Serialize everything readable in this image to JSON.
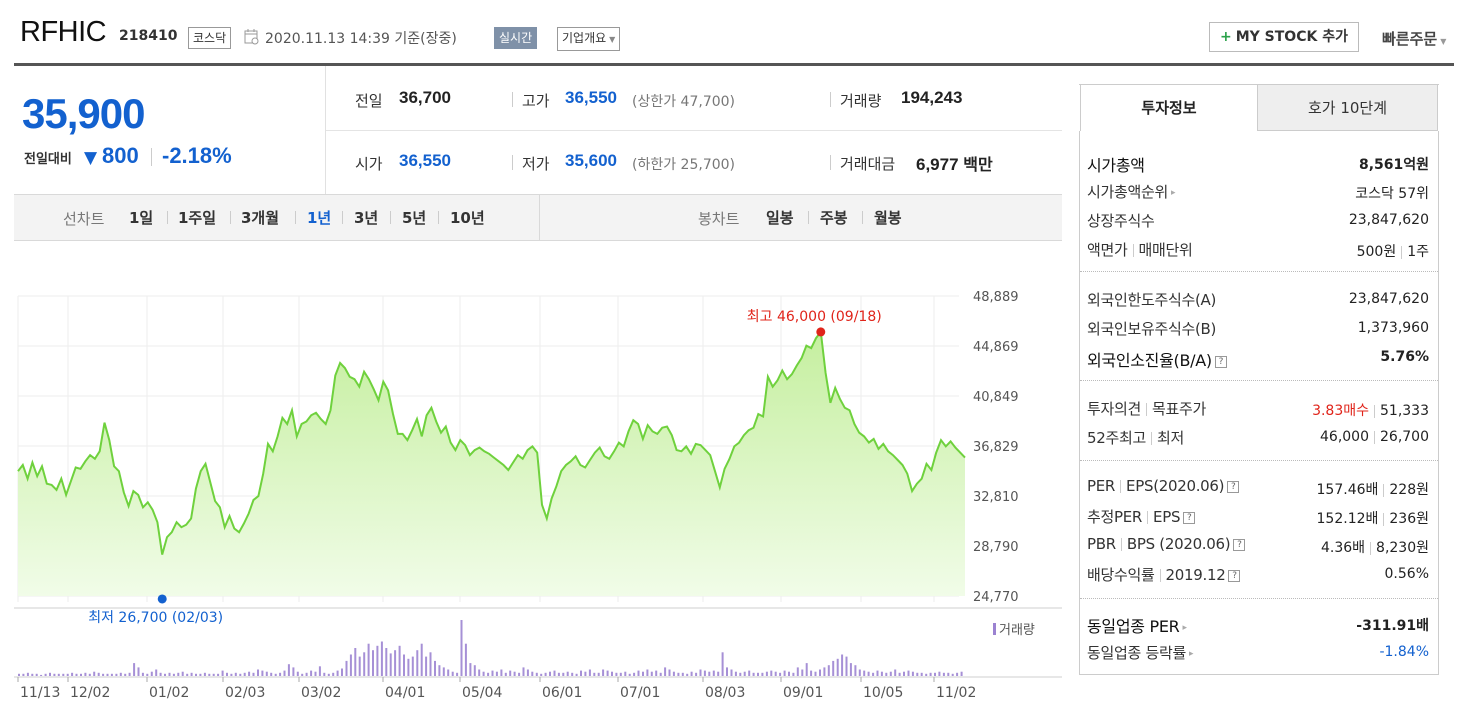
{
  "header": {
    "name": "RFHIC",
    "code": "218410",
    "market": "코스닥",
    "datetime": "2020.11.13 14:39 기준(장중)",
    "realtime_label": "실시간",
    "company_label": "기업개요",
    "mystock_label": "MY STOCK 추가",
    "mystock_plus": "+",
    "quick_order": "빠른주문"
  },
  "price": {
    "current": "35,900",
    "change_label": "전일대비",
    "change_arrow": "▼",
    "change_value": "800",
    "change_pct": "-2.18%",
    "color_down": "#1361cf"
  },
  "stats": {
    "prev_close": {
      "label": "전일",
      "value": "36,700"
    },
    "high": {
      "label": "고가",
      "value": "36,550",
      "note": "(상한가 47,700)"
    },
    "volume": {
      "label": "거래량",
      "value": "194,243"
    },
    "open": {
      "label": "시가",
      "value": "36,550"
    },
    "low": {
      "label": "저가",
      "value": "35,600",
      "note": "(하한가 25,700)"
    },
    "amount": {
      "label": "거래대금",
      "value": "6,977",
      "unit": "백만"
    }
  },
  "period_bar": {
    "line_label": "선차트",
    "line_items": [
      "1일",
      "1주일",
      "3개월",
      "1년",
      "3년",
      "5년",
      "10년"
    ],
    "active": "1년",
    "candle_label": "봉차트",
    "candle_items": [
      "일봉",
      "주봉",
      "월봉"
    ]
  },
  "chart_data": {
    "type": "area",
    "x_tick_labels": [
      "11/13",
      "12/02",
      "01/02",
      "02/03",
      "03/02",
      "04/01",
      "05/04",
      "06/01",
      "07/01",
      "08/03",
      "09/01",
      "10/05",
      "11/02"
    ],
    "y_tick_labels": [
      "48,889",
      "44,869",
      "40,849",
      "36,829",
      "32,810",
      "28,790",
      "24,770"
    ],
    "ylim": [
      24770,
      48889
    ],
    "price_series": [
      34800,
      35300,
      34200,
      35500,
      34400,
      35200,
      33800,
      33700,
      33300,
      34200,
      32900,
      34000,
      35100,
      35000,
      35600,
      36100,
      35800,
      36400,
      38700,
      37300,
      35200,
      34800,
      33100,
      32000,
      33200,
      32900,
      31900,
      32300,
      31700,
      30700,
      28100,
      29500,
      29900,
      30700,
      30300,
      30500,
      31000,
      33400,
      34800,
      35400,
      33900,
      32400,
      31900,
      30300,
      31200,
      30200,
      29900,
      30600,
      31400,
      32500,
      32800,
      34600,
      37000,
      36400,
      37600,
      39100,
      38600,
      39700,
      37600,
      38600,
      38800,
      39300,
      39500,
      39000,
      38600,
      39700,
      42500,
      43500,
      43100,
      42400,
      42200,
      41600,
      42800,
      42200,
      41400,
      40500,
      42000,
      41300,
      39400,
      37800,
      37800,
      37300,
      38100,
      39000,
      37600,
      39300,
      39900,
      38800,
      37900,
      38400,
      37100,
      36500,
      37300,
      36900,
      36100,
      36500,
      36700,
      36400,
      36200,
      35900,
      35600,
      35300,
      34900,
      35500,
      36100,
      35800,
      36500,
      36800,
      36300,
      32100,
      31000,
      32600,
      33600,
      34800,
      35300,
      35600,
      36000,
      35300,
      35100,
      35700,
      36300,
      36700,
      36000,
      35800,
      36400,
      37100,
      36800,
      38000,
      38900,
      38600,
      37400,
      38500,
      38000,
      37800,
      38300,
      38400,
      37700,
      36500,
      36400,
      36800,
      36200,
      37000,
      36900,
      36500,
      36100,
      34800,
      33500,
      35000,
      35800,
      36800,
      37100,
      37700,
      38100,
      38300,
      39400,
      39200,
      42400,
      41600,
      42100,
      42900,
      42200,
      42600,
      43300,
      43900,
      44900,
      44700,
      45500,
      46000,
      42700,
      40300,
      41500,
      40600,
      39900,
      39700,
      38600,
      37900,
      37600,
      37100,
      37400,
      36600,
      37000,
      36400,
      36100,
      35700,
      35300,
      34600,
      33200,
      33800,
      34200,
      35400,
      34900,
      36300,
      37300,
      36800,
      37200,
      36700,
      36300,
      35900
    ],
    "max_label": "최고 46,000 (09/18)",
    "min_label": "최저 26,700 (02/03)",
    "volume_label": "거래량",
    "volume_series": [
      2,
      2,
      3,
      2,
      2,
      1,
      2,
      3,
      2,
      2,
      2,
      2,
      3,
      2,
      2,
      3,
      2,
      4,
      3,
      2,
      2,
      2,
      2,
      3,
      2,
      3,
      12,
      8,
      3,
      2,
      4,
      6,
      3,
      2,
      3,
      2,
      3,
      4,
      2,
      3,
      2,
      2,
      3,
      2,
      2,
      2,
      5,
      3,
      2,
      3,
      2,
      3,
      4,
      3,
      6,
      5,
      4,
      3,
      2,
      3,
      5,
      11,
      8,
      4,
      2,
      3,
      5,
      4,
      9,
      3,
      2,
      3,
      5,
      7,
      14,
      20,
      26,
      18,
      22,
      30,
      24,
      28,
      32,
      26,
      21,
      24,
      28,
      20,
      16,
      18,
      24,
      30,
      18,
      22,
      14,
      10,
      8,
      6,
      4,
      3,
      52,
      30,
      12,
      10,
      6,
      4,
      3,
      5,
      4,
      6,
      3,
      5,
      4,
      3,
      8,
      6,
      4,
      3,
      2,
      3,
      4,
      5,
      3,
      3,
      4,
      3,
      2,
      5,
      4,
      6,
      3,
      3,
      6,
      5,
      4,
      3,
      3,
      4,
      2,
      3,
      5,
      4,
      6,
      4,
      5,
      3,
      8,
      6,
      4,
      3,
      3,
      2,
      4,
      3,
      6,
      5,
      4,
      5,
      4,
      22,
      8,
      6,
      4,
      3,
      4,
      5,
      3,
      3,
      3,
      4,
      5,
      4,
      3,
      5,
      4,
      3,
      8,
      6,
      12,
      5,
      4,
      6,
      8,
      10,
      14,
      16,
      20,
      18,
      12,
      10,
      6,
      5,
      4,
      3,
      5,
      4,
      3,
      4,
      6,
      3,
      4,
      5,
      4,
      3,
      3,
      2,
      3,
      3,
      4,
      3,
      3,
      2,
      3,
      4
    ]
  },
  "invest": {
    "tab_invest": "투자정보",
    "tab_hoga": "호가 10단계",
    "market_cap": {
      "label": "시가총액",
      "value": "8,561억원"
    },
    "market_cap_rank": {
      "label": "시가총액순위",
      "value": "코스닥 57위"
    },
    "shares": {
      "label": "상장주식수",
      "value": "23,847,620"
    },
    "par_value": {
      "label": "액면가",
      "label2": "매매단위",
      "value": "500원",
      "value2": "1주"
    },
    "foreign_limit": {
      "label": "외국인한도주식수(A)",
      "value": "23,847,620"
    },
    "foreign_hold": {
      "label": "외국인보유주식수(B)",
      "value": "1,373,960"
    },
    "foreign_ratio": {
      "label": "외국인소진율(B/A)",
      "value": "5.76%"
    },
    "opinion": {
      "label": "투자의견",
      "label2": "목표주가",
      "value": "3.83매수",
      "value2": "51,333"
    },
    "week52": {
      "label": "52주최고",
      "label2": "최저",
      "value": "46,000",
      "value2": "26,700"
    },
    "per": {
      "label": "PER",
      "label2": "EPS(2020.06)",
      "value": "157.46배",
      "value2": "228원"
    },
    "est_per": {
      "label": "추정PER",
      "label2": "EPS",
      "value": "152.12배",
      "value2": "236원"
    },
    "pbr": {
      "label": "PBR",
      "label2": "BPS (2020.06)",
      "value": "4.36배",
      "value2": "8,230원"
    },
    "dividend": {
      "label": "배당수익률",
      "label2": "2019.12",
      "value": "0.56%"
    },
    "sector_per": {
      "label": "동일업종 PER",
      "value": "-311.91배"
    },
    "sector_change": {
      "label": "동일업종 등락률",
      "value": "-1.84%"
    },
    "q_icon": "?"
  }
}
